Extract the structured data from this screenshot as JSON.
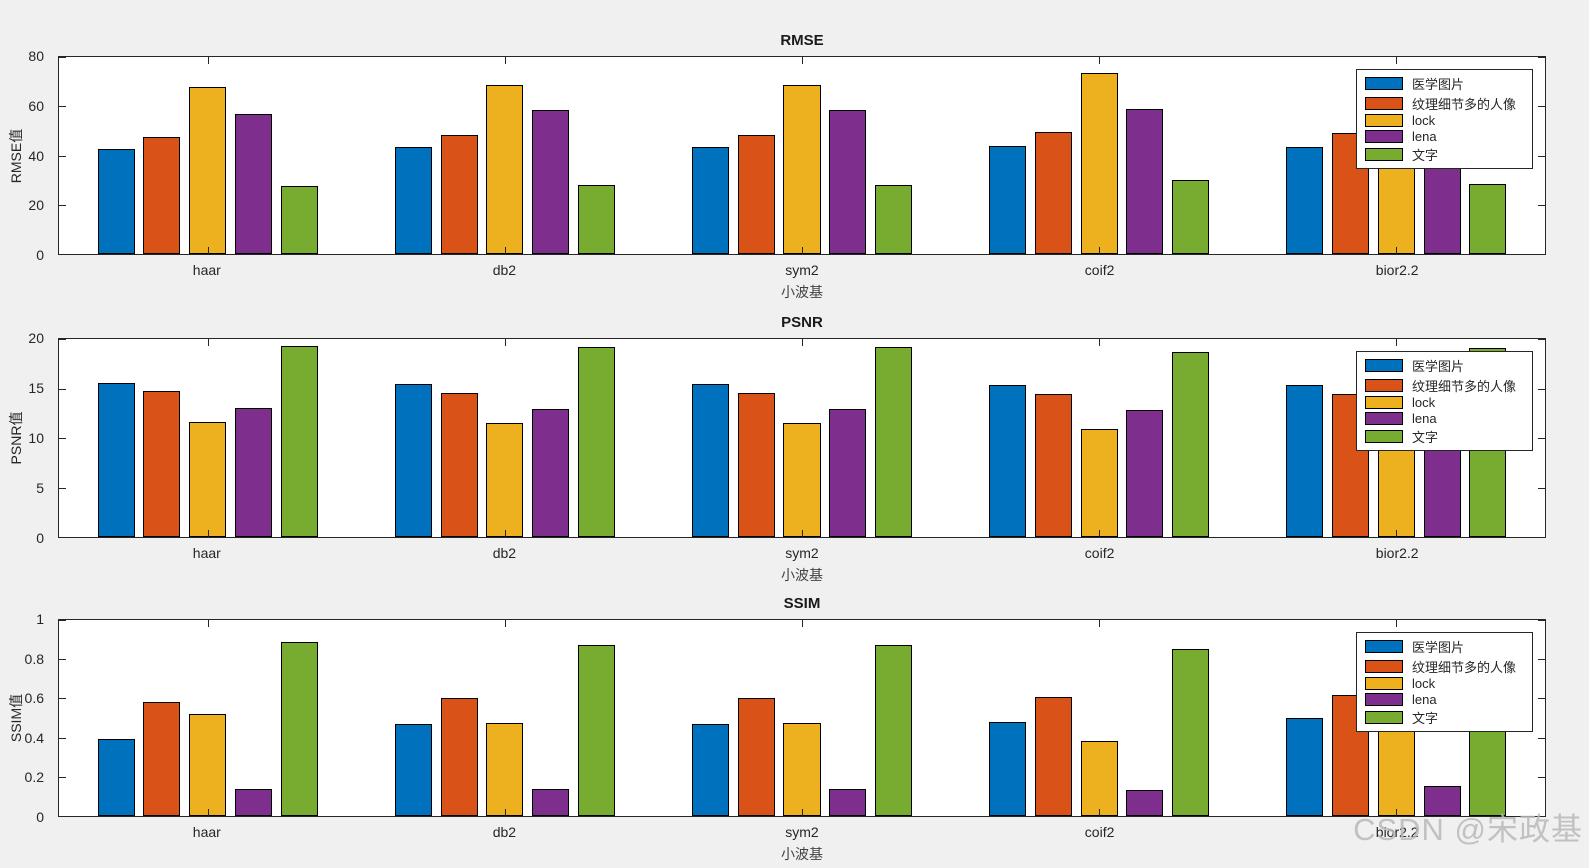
{
  "figure": {
    "background": "#f0f0f0",
    "plot_background": "#ffffff",
    "axis_color": "#262626",
    "watermark": "CSDN @宋政基"
  },
  "chart_data": [
    {
      "type": "bar",
      "title": "RMSE",
      "xlabel": "小波基",
      "ylabel": "RMSE值",
      "ylim": [
        0,
        80
      ],
      "yticks": [
        0,
        20,
        40,
        60,
        80
      ],
      "categories": [
        "haar",
        "db2",
        "sym2",
        "coif2",
        "bior2.2"
      ],
      "grid": false,
      "legend_position": "top-right",
      "series": [
        {
          "name": "医学图片",
          "color": "#0072BD",
          "values": [
            42.5,
            43.5,
            43.5,
            44,
            43.5
          ]
        },
        {
          "name": "纹理细节多的人像",
          "color": "#D95319",
          "values": [
            47.5,
            48.5,
            48.5,
            49.5,
            49
          ]
        },
        {
          "name": "lock",
          "color": "#EDB120",
          "values": [
            68,
            68.5,
            68.5,
            73.5,
            68
          ]
        },
        {
          "name": "lena",
          "color": "#7E2F8E",
          "values": [
            57,
            58.5,
            58.5,
            59,
            58
          ]
        },
        {
          "name": "文字",
          "color": "#77AC30",
          "values": [
            27.5,
            28,
            28,
            30,
            28.5
          ]
        }
      ]
    },
    {
      "type": "bar",
      "title": "PSNR",
      "xlabel": "小波基",
      "ylabel": "PSNR值",
      "ylim": [
        0,
        20
      ],
      "yticks": [
        0,
        5,
        10,
        15,
        20
      ],
      "categories": [
        "haar",
        "db2",
        "sym2",
        "coif2",
        "bior2.2"
      ],
      "grid": false,
      "legend_position": "top-right",
      "series": [
        {
          "name": "医学图片",
          "color": "#0072BD",
          "values": [
            15.6,
            15.5,
            15.5,
            15.4,
            15.4
          ]
        },
        {
          "name": "纹理细节多的人像",
          "color": "#D95319",
          "values": [
            14.7,
            14.5,
            14.5,
            14.4,
            14.4
          ]
        },
        {
          "name": "lock",
          "color": "#EDB120",
          "values": [
            11.6,
            11.5,
            11.5,
            10.9,
            11.5
          ]
        },
        {
          "name": "lena",
          "color": "#7E2F8E",
          "values": [
            13.0,
            12.9,
            12.9,
            12.8,
            12.9
          ]
        },
        {
          "name": "文字",
          "color": "#77AC30",
          "values": [
            19.3,
            19.2,
            19.2,
            18.7,
            19.1
          ]
        }
      ]
    },
    {
      "type": "bar",
      "title": "SSIM",
      "xlabel": "小波基",
      "ylabel": "SSIM值",
      "ylim": [
        0,
        1
      ],
      "yticks": [
        0,
        0.2,
        0.4,
        0.6,
        0.8,
        1
      ],
      "categories": [
        "haar",
        "db2",
        "sym2",
        "coif2",
        "bior2.2"
      ],
      "grid": false,
      "legend_position": "top-right",
      "series": [
        {
          "name": "医学图片",
          "color": "#0072BD",
          "values": [
            0.395,
            0.47,
            0.47,
            0.48,
            0.5
          ]
        },
        {
          "name": "纹理细节多的人像",
          "color": "#D95319",
          "values": [
            0.58,
            0.6,
            0.6,
            0.605,
            0.615
          ]
        },
        {
          "name": "lock",
          "color": "#EDB120",
          "values": [
            0.52,
            0.475,
            0.475,
            0.385,
            0.48
          ]
        },
        {
          "name": "lena",
          "color": "#7E2F8E",
          "values": [
            0.14,
            0.14,
            0.14,
            0.135,
            0.155
          ]
        },
        {
          "name": "文字",
          "color": "#77AC30",
          "values": [
            0.89,
            0.875,
            0.87,
            0.85,
            0.85
          ]
        }
      ]
    }
  ]
}
